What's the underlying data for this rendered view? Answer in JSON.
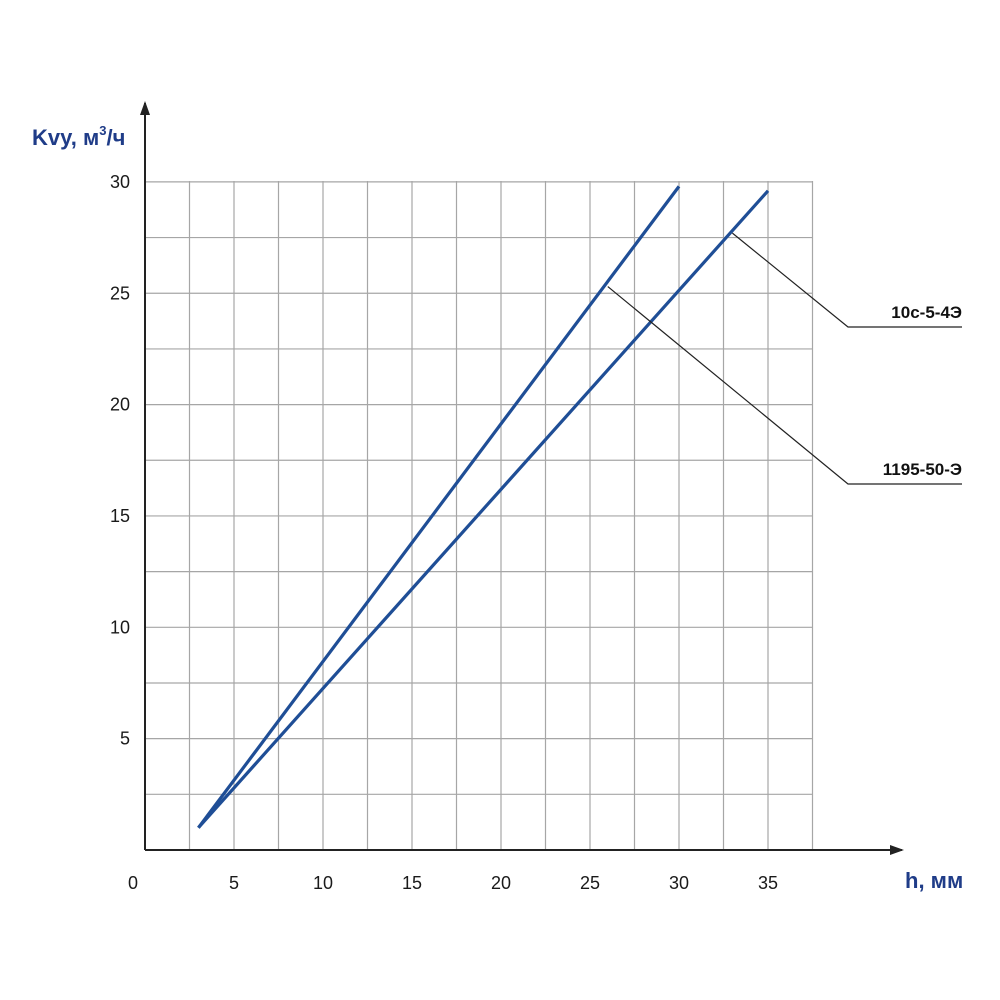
{
  "chart_data": {
    "type": "line",
    "title": "",
    "xlabel": "h, мм",
    "ylabel": {
      "main": "Kvy, м",
      "sup": "3",
      "tail": "/ч"
    },
    "x_origin_label": "0",
    "xlim": [
      0,
      37.5
    ],
    "ylim": [
      0,
      30
    ],
    "x_ticks": [
      5,
      10,
      15,
      20,
      25,
      30,
      35
    ],
    "y_ticks": [
      5,
      10,
      15,
      20,
      25,
      30
    ],
    "grid": true,
    "series": [
      {
        "name": "10с-5-4Э",
        "x": [
          3,
          30
        ],
        "y": [
          1,
          29.8
        ]
      },
      {
        "name": "1195-50-Э",
        "x": [
          3,
          35
        ],
        "y": [
          1,
          29.6
        ]
      }
    ],
    "annotations": [
      {
        "series": "10с-5-4Э",
        "text": "10с-5-4Э",
        "point": [
          33,
          27.7
        ]
      },
      {
        "series": "1195-50-Э",
        "text": "1195-50-Э",
        "point": [
          26,
          25.3
        ]
      }
    ],
    "colors": {
      "line": "#1f4e96",
      "grid": "#a6a6a6",
      "axis": "#222222",
      "axis_title": "#1f3c88"
    }
  }
}
